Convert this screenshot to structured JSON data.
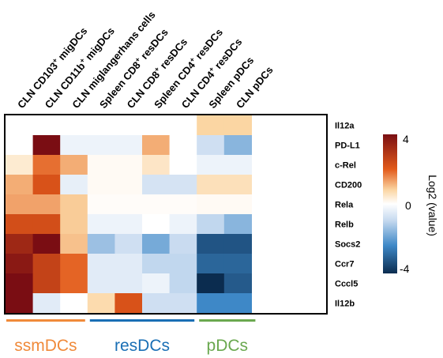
{
  "chart_data": {
    "type": "heatmap",
    "columns": [
      {
        "pre": "CLN CD103",
        "sup": "+",
        "post": " migDCs"
      },
      {
        "pre": "CLN CD11b",
        "sup": "+",
        "post": " migDCs"
      },
      {
        "pre": "CLN miglangerhans cells",
        "sup": "",
        "post": ""
      },
      {
        "pre": "Spleen CD8",
        "sup": "+",
        "post": " resDCs"
      },
      {
        "pre": "CLN CD8",
        "sup": "+",
        "post": " resDCs"
      },
      {
        "pre": "Spleen CD4",
        "sup": "+",
        "post": " resDCs"
      },
      {
        "pre": "CLN CD4",
        "sup": "+",
        "post": " resDCs"
      },
      {
        "pre": "Spleen pDCs",
        "sup": "",
        "post": ""
      },
      {
        "pre": "CLN pDCs",
        "sup": "",
        "post": ""
      }
    ],
    "rows": [
      "Il12a",
      "PD-L1",
      "c-Rel",
      "CD200",
      "Rela",
      "Relb",
      "Socs2",
      "Ccr7",
      "Cccl5",
      "Il12b"
    ],
    "values": [
      [
        0,
        0,
        0,
        0,
        0,
        0,
        0,
        0.8,
        0.8
      ],
      [
        0,
        4,
        -0.3,
        -0.3,
        -0.3,
        1.2,
        0,
        -0.8,
        -1.6
      ],
      [
        0.4,
        1.8,
        1.2,
        0.1,
        0.1,
        0.5,
        0,
        -0.3,
        -0.3
      ],
      [
        1.2,
        2.2,
        -0.4,
        0.1,
        0.1,
        -0.7,
        -0.7,
        0.6,
        0.6
      ],
      [
        1.3,
        1.3,
        0.9,
        0.05,
        0.05,
        0.05,
        0.05,
        0.1,
        0.1
      ],
      [
        2.3,
        2.3,
        0.9,
        -0.3,
        -0.3,
        0,
        -0.3,
        -1.0,
        -1.6
      ],
      [
        3.3,
        4,
        1.0,
        -1.4,
        -0.8,
        -1.8,
        -0.9,
        -3.3,
        -3.3
      ],
      [
        3.7,
        2.6,
        1.9,
        -0.5,
        -0.5,
        -1.0,
        -1.0,
        -3.0,
        -3.0
      ],
      [
        4,
        2.6,
        1.9,
        -0.5,
        -0.5,
        -0.3,
        -1.0,
        -4,
        -3.2
      ],
      [
        4,
        -0.5,
        0,
        0.7,
        2.2,
        -0.8,
        -0.8,
        -2.4,
        -2.4
      ]
    ],
    "scale": {
      "min": -4,
      "max": 4,
      "ticks": [
        "4",
        "0",
        "-4"
      ],
      "label": "Log2 (value)"
    },
    "groups": [
      {
        "label": "ssmDCs",
        "color": "#f08a3a",
        "from": 0,
        "to": 2
      },
      {
        "label": "resDCs",
        "color": "#1a6fb5",
        "from": 3,
        "to": 6
      },
      {
        "label": "pDCs",
        "color": "#6aa84f",
        "from": 7,
        "to": 8
      }
    ]
  }
}
